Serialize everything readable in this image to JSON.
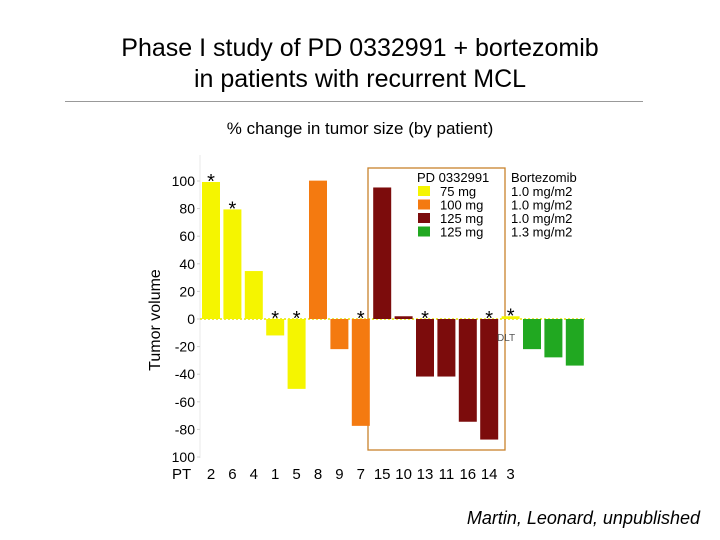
{
  "header": {
    "title_line1": "Phase I study of PD 0332991 + bortezomib",
    "title_line2": "in patients with recurrent MCL"
  },
  "credit": "Martin, Leonard, unpublished",
  "chart_data": {
    "type": "bar",
    "title": "% change in tumor size (by patient)",
    "ylabel": "Tumor volume",
    "xlabel": "PT",
    "ylim": [
      -100,
      100
    ],
    "yticks": [
      100,
      80,
      60,
      40,
      20,
      0,
      -20,
      -40,
      -60,
      -80,
      100
    ],
    "categories": [
      "2",
      "6",
      "4",
      "1",
      "5",
      "8",
      "9",
      "7",
      "15",
      "10",
      "13",
      "11",
      "16",
      "14",
      "3",
      "",
      "",
      ""
    ],
    "values": [
      100,
      80,
      35,
      -12,
      -51,
      101,
      -22,
      -78,
      96,
      2,
      -42,
      -42,
      -75,
      -88,
      2,
      -22,
      -28,
      -34
    ],
    "group": [
      0,
      0,
      0,
      0,
      0,
      1,
      1,
      1,
      2,
      2,
      2,
      2,
      2,
      2,
      0,
      3,
      3,
      3
    ],
    "asterisk": [
      true,
      true,
      false,
      true,
      true,
      false,
      false,
      true,
      false,
      false,
      true,
      false,
      false,
      true,
      true,
      false,
      false,
      false
    ],
    "group_colors": [
      "#f5f500",
      "#f47a10",
      "#7c0c0c",
      "#21a821"
    ],
    "legend": {
      "header_left": "PD 0332991",
      "header_right": "Bortezomib",
      "entries": [
        {
          "dose": "75 mg",
          "bortezomib": "1.0 mg/m2"
        },
        {
          "dose": "100 mg",
          "bortezomib": "1.0 mg/m2"
        },
        {
          "dose": "125 mg",
          "bortezomib": "1.0 mg/m2"
        },
        {
          "dose": "125 mg",
          "bortezomib": "1.3 mg/m2"
        }
      ]
    },
    "annotations": [
      "DLT"
    ],
    "asterisk_symbol": "*",
    "box_color": "#c8822d"
  }
}
